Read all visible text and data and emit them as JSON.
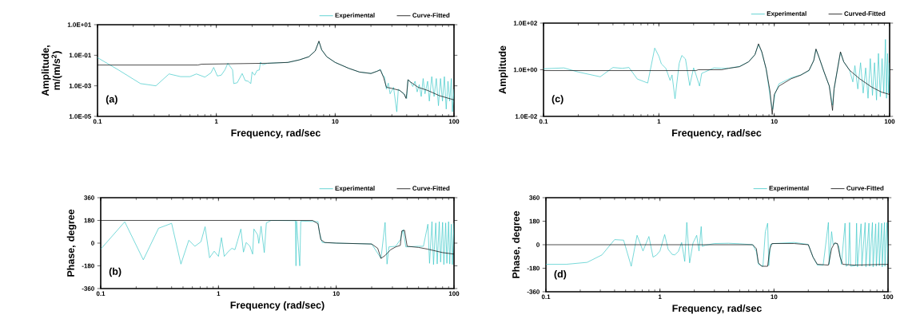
{
  "chart_data": [
    {
      "type": "line",
      "xlabel": "Frequency, rad/sec",
      "ylabel": "Amplitude, m/(m/s$^{2}$)",
      "annotations": [
        "(a)"
      ],
      "log": "xy",
      "legend": "top right",
      "marker": "none",
      "line_style": "solid",
      "xlim": [
        0.1,
        100
      ],
      "xticks": [
        0.1,
        1,
        10,
        100
      ],
      "ylim": [
        1e-05,
        10
      ],
      "yticks": [
        {
          "value": 10,
          "label": "1.0E+01"
        },
        {
          "value": 0.1,
          "label": "1.0E-01"
        },
        {
          "value": 0.001,
          "label": "1.0E-03"
        },
        {
          "value": 1e-05,
          "label": "1.0E-05"
        }
      ],
      "series": [
        {
          "name": "Experimental",
          "color": "#3cc8c8",
          "x": [
            0.1,
            0.15,
            0.23,
            0.31,
            0.4,
            0.5,
            0.6,
            0.68,
            0.8,
            0.9,
            0.95,
            1.02,
            1.1,
            1.18,
            1.25,
            1.37,
            1.4,
            1.5,
            1.65,
            1.75,
            1.85,
            1.95,
            2.0,
            2.1,
            2.2,
            2.3,
            2.35,
            2.45,
            2.7,
            4,
            5,
            6,
            6.8,
            7.3,
            7.7,
            8.5,
            10,
            13,
            16,
            20,
            22.5,
            24,
            25.5,
            26,
            27,
            28,
            29,
            31,
            33,
            34,
            36,
            38,
            40,
            41,
            43,
            45,
            47,
            49,
            51,
            53,
            55,
            57,
            60,
            62,
            65,
            68,
            71,
            74,
            77,
            80,
            83,
            86,
            89,
            92,
            95,
            97,
            100
          ],
          "values": [
            0.07,
            0.011,
            0.0014,
            0.001,
            0.006,
            0.004,
            0.004,
            0.006,
            0.0037,
            0.007,
            0.016,
            0.0044,
            0.005,
            0.011,
            0.03,
            0.011,
            0.0014,
            0.0016,
            0.0064,
            0.0022,
            0.002,
            0.0014,
            0.008,
            0.005,
            0.01,
            0.011,
            0.035,
            0.024,
            0.03,
            0.034,
            0.05,
            0.08,
            0.2,
            0.8,
            0.22,
            0.08,
            0.034,
            0.014,
            0.008,
            0.0065,
            0.009,
            0.012,
            0.004,
            0.004,
            0.0006,
            0.0015,
            0.0003,
            0.0008,
            2e-05,
            0.0006,
            0.0004,
            0.0003,
            0.00015,
            0.0025,
            0.0018,
            0.0009,
            0.002,
            0.0004,
            0.0012,
            0.0002,
            0.003,
            0.0003,
            0.002,
            0.0001,
            0.004,
            0.0002,
            0.003,
            5e-05,
            0.003,
            0.0001,
            0.004,
            3e-05,
            0.002,
            0.0001,
            0.003,
            2e-05,
            0.0006
          ]
        },
        {
          "name": "Curve-Fitted",
          "color": "#000000",
          "x": [
            0.1,
            0.7,
            0.75,
            2.7,
            4,
            5,
            6,
            6.8,
            7.3,
            7.7,
            8.5,
            10,
            13,
            16,
            20,
            22.5,
            24,
            25.5,
            27,
            30,
            35,
            38,
            39.5,
            40,
            41,
            43,
            50,
            60,
            75,
            100
          ],
          "values": [
            0.023,
            0.023,
            0.026,
            0.03,
            0.034,
            0.05,
            0.08,
            0.19,
            0.85,
            0.23,
            0.08,
            0.034,
            0.014,
            0.008,
            0.0064,
            0.009,
            0.011,
            0.0037,
            0.0008,
            0.00068,
            0.0005,
            0.00029,
            0.00015,
            0.0003,
            0.0025,
            0.0018,
            0.0008,
            0.0005,
            0.00023,
            0.00012
          ]
        }
      ]
    },
    {
      "type": "line",
      "xlabel": "Frequency, rad/sec",
      "ylabel": "Amplitude",
      "annotations": [
        "(c)"
      ],
      "log": "xy",
      "legend": "top right",
      "marker": "none",
      "line_style": "solid",
      "xlim": [
        0.1,
        100
      ],
      "xticks": [
        0.1,
        1,
        10,
        100
      ],
      "ylim": [
        0.01,
        100
      ],
      "yticks": [
        {
          "value": 100,
          "label": "1.0E+02"
        },
        {
          "value": 1,
          "label": "1.0E+00"
        },
        {
          "value": 0.01,
          "label": "1.0E-02"
        }
      ],
      "series": [
        {
          "name": "Experimental",
          "color": "#3cc8c8",
          "x": [
            0.1,
            0.15,
            0.2,
            0.31,
            0.4,
            0.48,
            0.55,
            0.65,
            0.8,
            0.92,
            1.0,
            1.05,
            1.15,
            1.25,
            1.3,
            1.38,
            1.5,
            1.58,
            1.7,
            1.85,
            2.0,
            2.1,
            2.25,
            2.35,
            2.5,
            3,
            3.5,
            4,
            5,
            6,
            6.8,
            7.3,
            7.8,
            8.5,
            9.3,
            9.7,
            10.2,
            11,
            14,
            17,
            20,
            22,
            23,
            24.5,
            27,
            30,
            32,
            33,
            35,
            37.5,
            40,
            45,
            48,
            50,
            53,
            56,
            59,
            62,
            65,
            68,
            71,
            74,
            77,
            80,
            83,
            86,
            89,
            92,
            94,
            96,
            98,
            100
          ],
          "values": [
            1.1,
            1.2,
            0.8,
            0.5,
            1.25,
            1.15,
            1.25,
            0.4,
            0.27,
            8.5,
            3.8,
            1.8,
            1.15,
            0.35,
            0.6,
            0.057,
            1.9,
            4.1,
            2.9,
            0.21,
            1.2,
            0.6,
            0.2,
            0.7,
            0.8,
            1.2,
            1.15,
            1.15,
            1.4,
            2.2,
            4.5,
            12,
            5.5,
            1.1,
            0.05,
            0.02,
            0.1,
            0.25,
            0.45,
            0.6,
            0.9,
            2.5,
            7.5,
            3.3,
            0.8,
            0.2,
            0.03,
            0.15,
            0.8,
            5.5,
            2.2,
            0.95,
            0.3,
            1.5,
            0.15,
            2,
            0.1,
            1.2,
            0.06,
            3,
            0.08,
            2,
            0.05,
            5,
            0.07,
            3,
            0.1,
            20,
            0.06,
            5,
            0.1,
            2
          ]
        },
        {
          "name": "Curved-Fitted",
          "color": "#000000",
          "x": [
            0.1,
            2.1,
            2.2,
            3.5,
            4,
            5,
            6,
            6.8,
            7.3,
            7.8,
            8.5,
            9.2,
            9.6,
            10,
            11,
            14,
            17,
            20,
            22,
            23,
            24.5,
            27,
            30,
            32,
            33,
            35,
            37.5,
            40,
            45,
            55,
            70,
            85,
            100
          ],
          "values": [
            0.92,
            0.92,
            1.0,
            1.0,
            1.15,
            1.35,
            2.2,
            4.4,
            13,
            5.9,
            1.1,
            0.115,
            0.012,
            0.087,
            0.2,
            0.41,
            0.59,
            0.95,
            2.5,
            7.8,
            3.3,
            0.82,
            0.2,
            0.018,
            0.15,
            0.82,
            5.9,
            2.2,
            0.95,
            0.41,
            0.18,
            0.11,
            0.087
          ]
        }
      ]
    },
    {
      "type": "line",
      "xlabel": "Frequency (rad/sec)",
      "ylabel": "Phase, degree",
      "annotations": [
        "(b)"
      ],
      "log": "x",
      "legend": "top right",
      "marker": "none",
      "line_style": "solid",
      "xlim": [
        0.1,
        100
      ],
      "xticks": [
        0.1,
        1,
        10,
        100
      ],
      "ylim": [
        -360,
        360
      ],
      "yticks": [
        -360,
        -180,
        0,
        180,
        360
      ],
      "series": [
        {
          "name": "Experimental",
          "color": "#3cc8c8",
          "x": [
            0.1,
            0.16,
            0.23,
            0.31,
            0.4,
            0.48,
            0.56,
            0.63,
            0.71,
            0.77,
            0.84,
            0.92,
            1.0,
            1.06,
            1.12,
            1.22,
            1.3,
            1.38,
            1.45,
            1.55,
            1.63,
            1.72,
            1.85,
            1.95,
            2.0,
            2.15,
            2.2,
            2.3,
            2.45,
            2.55,
            2.8,
            4.5,
            4.55,
            4.6,
            4.9,
            5.0,
            7.0,
            7.2,
            7.6,
            10,
            20,
            24,
            26,
            27,
            28,
            32,
            35,
            37,
            39,
            50,
            55,
            60,
            62,
            65,
            67,
            70,
            72,
            75,
            77,
            80,
            82,
            85,
            87,
            90,
            92,
            95,
            97,
            100
          ],
          "values": [
            -48,
            169,
            -132,
            118,
            157,
            -166,
            23,
            -25,
            11,
            130,
            -116,
            -64,
            -105,
            43,
            -105,
            -64,
            -41,
            -52,
            16,
            112,
            -71,
            5,
            -25,
            -87,
            112,
            66,
            -2,
            134,
            -75,
            160,
            180,
            178,
            -180,
            175,
            -180,
            175,
            170,
            84,
            5,
            0,
            -7,
            -121,
            164,
            -166,
            -30,
            -25,
            27,
            107,
            -30,
            -25,
            -25,
            150,
            -160,
            170,
            -170,
            160,
            -165,
            170,
            -150,
            165,
            -170,
            160,
            -160,
            170,
            -165,
            150,
            -170,
            160
          ]
        },
        {
          "name": "Curve-Fitted",
          "color": "#000000",
          "x": [
            0.1,
            6.3,
            7,
            7.4,
            8,
            10,
            20,
            22.5,
            24,
            26,
            29,
            32,
            35,
            36,
            38,
            40,
            50,
            60,
            80,
            100
          ],
          "values": [
            180,
            180,
            153,
            27,
            5,
            0,
            -7,
            -41,
            -121,
            -98,
            -52,
            -30,
            -18,
            96,
            102,
            -25,
            -34,
            -48,
            -75,
            -87
          ]
        }
      ]
    },
    {
      "type": "line",
      "xlabel": "Frequency, rad/sec",
      "ylabel": "Phase, degree",
      "annotations": [
        "(d)"
      ],
      "log": "x",
      "legend": "top right",
      "marker": "none",
      "line_style": "solid",
      "xlim": [
        0.1,
        100
      ],
      "xticks": [
        0.1,
        1,
        10,
        100
      ],
      "ylim": [
        -360,
        360
      ],
      "yticks": [
        -360,
        -180,
        0,
        180,
        360
      ],
      "series": [
        {
          "name": "Experimental",
          "color": "#3cc8c8",
          "x": [
            0.1,
            0.15,
            0.23,
            0.31,
            0.4,
            0.48,
            0.56,
            0.63,
            0.71,
            0.8,
            0.87,
            0.93,
            1.0,
            1.1,
            1.18,
            1.28,
            1.35,
            1.45,
            1.55,
            1.65,
            1.72,
            1.82,
            1.95,
            2.1,
            2.2,
            2.3,
            2.35,
            2.5,
            3,
            4,
            5,
            6.5,
            7,
            7.3,
            8,
            8.4,
            8.8,
            9.0,
            9.3,
            10,
            15,
            20,
            22,
            24,
            27,
            30,
            30.5,
            32,
            33,
            35,
            37,
            39,
            42,
            43,
            45,
            46,
            47,
            52,
            53,
            54,
            58,
            59,
            63,
            64,
            68,
            69,
            73,
            74,
            78,
            79,
            83,
            84,
            88,
            89,
            93,
            94,
            98,
            100
          ],
          "values": [
            -150,
            -150,
            -135,
            -78,
            39,
            35,
            -165,
            72,
            -48,
            63,
            -95,
            -80,
            -48,
            78,
            -35,
            -74,
            -78,
            -52,
            17,
            -128,
            171,
            -139,
            13,
            72,
            -48,
            139,
            -13,
            -4,
            9,
            11,
            7,
            0,
            -52,
            -150,
            -165,
            100,
            165,
            -160,
            2,
            9,
            17,
            2,
            -95,
            -156,
            -156,
            171,
            -150,
            100,
            2,
            13,
            -10,
            -150,
            165,
            -165,
            -150,
            170,
            -165,
            -160,
            165,
            -170,
            160,
            -165,
            170,
            -170,
            165,
            -165,
            170,
            -170,
            160,
            -165,
            170,
            -160,
            165,
            -170,
            170,
            -165,
            170,
            -150
          ]
        },
        {
          "name": "Curve-Fitted",
          "color": "#000000",
          "x": [
            0.1,
            6.5,
            7,
            7.3,
            7.8,
            8.8,
            9.2,
            9.6,
            15,
            20,
            22,
            24,
            30,
            32,
            34,
            36,
            38,
            40,
            50,
            100
          ],
          "values": [
            0,
            0,
            -30,
            -139,
            -165,
            -165,
            -30,
            9,
            9,
            0,
            -95,
            -150,
            -156,
            -30,
            13,
            9,
            -95,
            -150,
            -156,
            -150
          ]
        }
      ]
    }
  ]
}
